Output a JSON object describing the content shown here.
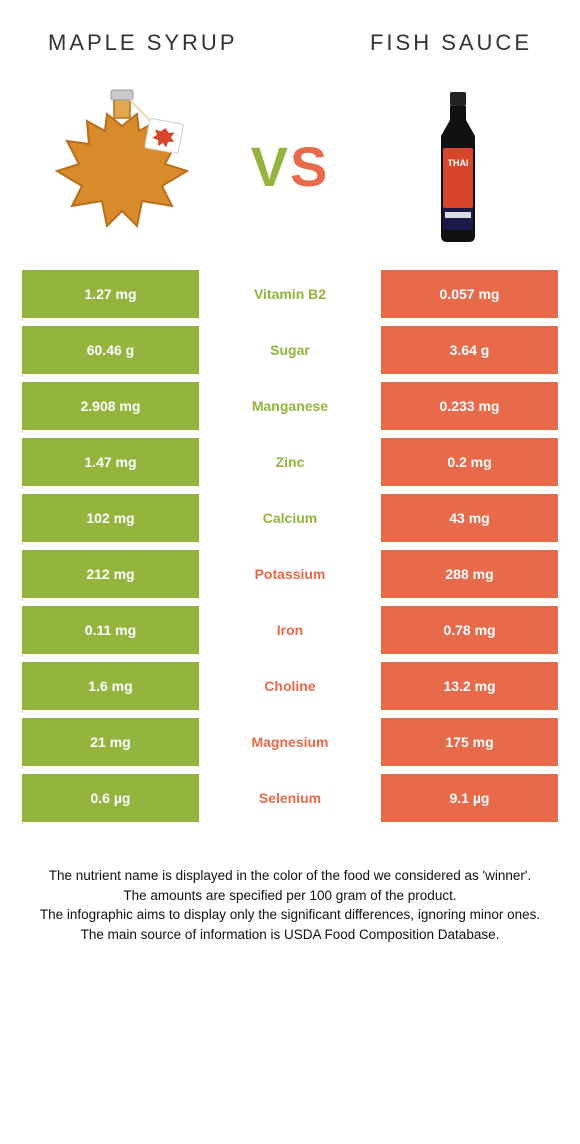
{
  "header": {
    "left_title": "Maple syrup",
    "right_title": "Fish sauce",
    "vs_v": "V",
    "vs_s": "S"
  },
  "colors": {
    "green": "#93b53e",
    "orange": "#e76a4b",
    "text_dark": "#333333",
    "maple_fill": "#d98a2b",
    "maple_dark": "#b86f1c",
    "fish_bottle": "#111111",
    "fish_label": "#d6452c",
    "fish_cap": "#222222"
  },
  "table": {
    "rows": [
      {
        "nutrient": "Vitamin B2",
        "left": "1.27 mg",
        "right": "0.057 mg",
        "winner": "left"
      },
      {
        "nutrient": "Sugar",
        "left": "60.46 g",
        "right": "3.64 g",
        "winner": "left"
      },
      {
        "nutrient": "Manganese",
        "left": "2.908 mg",
        "right": "0.233 mg",
        "winner": "left"
      },
      {
        "nutrient": "Zinc",
        "left": "1.47 mg",
        "right": "0.2 mg",
        "winner": "left"
      },
      {
        "nutrient": "Calcium",
        "left": "102 mg",
        "right": "43 mg",
        "winner": "left"
      },
      {
        "nutrient": "Potassium",
        "left": "212 mg",
        "right": "288 mg",
        "winner": "right"
      },
      {
        "nutrient": "Iron",
        "left": "0.11 mg",
        "right": "0.78 mg",
        "winner": "right"
      },
      {
        "nutrient": "Choline",
        "left": "1.6 mg",
        "right": "13.2 mg",
        "winner": "right"
      },
      {
        "nutrient": "Magnesium",
        "left": "21 mg",
        "right": "175 mg",
        "winner": "right"
      },
      {
        "nutrient": "Selenium",
        "left": "0.6 µg",
        "right": "9.1 µg",
        "winner": "right"
      }
    ]
  },
  "footnotes": {
    "line1": "The nutrient name is displayed in the color of the food we considered as 'winner'.",
    "line2": "The amounts are specified per 100 gram of the product.",
    "line3": "The infographic aims to display only the significant differences, ignoring minor ones.",
    "line4": "The main source of information is USDA Food Composition Database."
  }
}
